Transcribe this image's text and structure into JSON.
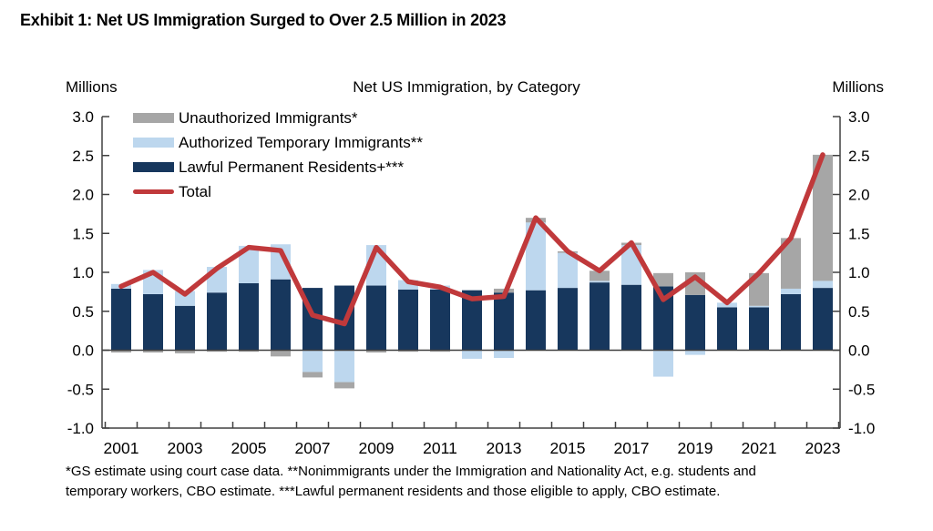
{
  "exhibit_title": "Exhibit 1: Net US Immigration Surged to Over 2.5 Million in 2023",
  "header": {
    "left_axis_units": "Millions",
    "chart_title": "Net US Immigration, by Category",
    "right_axis_units": "Millions"
  },
  "legend": {
    "items": [
      {
        "label": "Unauthorized Immigrants*",
        "color": "#a6a6a6",
        "marker": "rect"
      },
      {
        "label": "Authorized Temporary Immigrants**",
        "color": "#bdd7ee",
        "marker": "rect"
      },
      {
        "label": "Lawful Permanent Residents+***",
        "color": "#17375d",
        "marker": "rect"
      },
      {
        "label": "Total",
        "color": "#c0393b",
        "marker": "line"
      }
    ]
  },
  "footnote": {
    "line1": "*GS estimate using court case data. **Nonimmigrants under the Immigration and Nationality Act, e.g. students and",
    "line2": "temporary workers, CBO estimate. ***Lawful permanent residents and those eligible to apply, CBO estimate."
  },
  "chart_data": {
    "type": "bar",
    "subtype": "stacked-bar-with-total-line",
    "title": "Net US Immigration, by Category",
    "units": "Millions",
    "ylim": [
      -1.0,
      3.0
    ],
    "ytick_step": 0.5,
    "grid": false,
    "legend_position": "top-left-inside",
    "categories": [
      2001,
      2002,
      2003,
      2004,
      2005,
      2006,
      2007,
      2008,
      2009,
      2010,
      2011,
      2012,
      2013,
      2014,
      2015,
      2016,
      2017,
      2018,
      2019,
      2020,
      2021,
      2022,
      2023
    ],
    "x_tick_labels": [
      "2001",
      "2003",
      "2005",
      "2007",
      "2009",
      "2011",
      "2013",
      "2015",
      "2017",
      "2019",
      "2021",
      "2023"
    ],
    "series": [
      {
        "name": "Lawful Permanent Residents+***",
        "color": "#17375d",
        "type": "bar",
        "values": [
          0.79,
          0.72,
          0.57,
          0.74,
          0.86,
          0.91,
          0.8,
          0.83,
          0.83,
          0.78,
          0.78,
          0.77,
          0.74,
          0.77,
          0.8,
          0.87,
          0.84,
          0.82,
          0.71,
          0.55,
          0.55,
          0.72,
          0.8
        ]
      },
      {
        "name": "Authorized Temporary Immigrants**",
        "color": "#bdd7ee",
        "type": "bar",
        "values": [
          0.06,
          0.31,
          0.19,
          0.33,
          0.48,
          0.45,
          -0.28,
          -0.41,
          0.52,
          0.12,
          0.05,
          -0.11,
          -0.1,
          0.87,
          0.45,
          0.02,
          0.51,
          -0.34,
          -0.06,
          0.06,
          0.02,
          0.07,
          0.09
        ]
      },
      {
        "name": "Unauthorized Immigrants*",
        "color": "#a6a6a6",
        "type": "bar",
        "values": [
          -0.03,
          -0.03,
          -0.04,
          -0.02,
          -0.02,
          -0.08,
          -0.07,
          -0.08,
          -0.03,
          -0.02,
          -0.02,
          0.0,
          0.05,
          0.06,
          0.02,
          0.13,
          0.03,
          0.17,
          0.29,
          0.0,
          0.42,
          0.65,
          1.62
        ]
      },
      {
        "name": "Total",
        "color": "#c0393b",
        "type": "line",
        "values": [
          0.82,
          1.0,
          0.72,
          1.05,
          1.32,
          1.28,
          0.45,
          0.34,
          1.32,
          0.88,
          0.81,
          0.66,
          0.69,
          1.7,
          1.27,
          1.02,
          1.38,
          0.65,
          0.94,
          0.61,
          0.99,
          1.44,
          2.51
        ]
      }
    ]
  }
}
